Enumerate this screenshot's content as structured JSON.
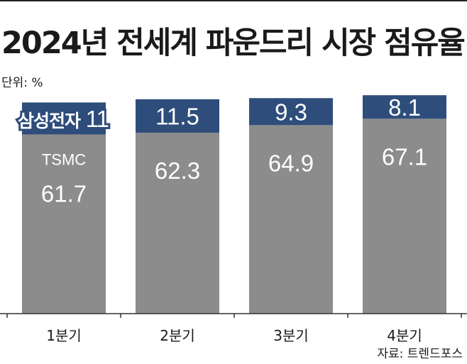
{
  "title": "2024년 전세계 파운드리 시장 점유율",
  "unit": "단위: %",
  "source": "자료: 트렌드포스",
  "colors": {
    "tsmc": "#8c8c8c",
    "samsung": "#2e4d7b",
    "axis": "#333333"
  },
  "chart_data": {
    "type": "bar",
    "stacked": true,
    "categories": [
      "1분기",
      "2분기",
      "3분기",
      "4분기"
    ],
    "series": [
      {
        "name": "TSMC",
        "values": [
          61.7,
          62.3,
          64.9,
          67.1
        ]
      },
      {
        "name": "삼성전자",
        "values": [
          11,
          11.5,
          9.3,
          8.1
        ]
      }
    ],
    "series_labels_on_first_bar": true,
    "ylim": [
      0,
      75
    ]
  }
}
